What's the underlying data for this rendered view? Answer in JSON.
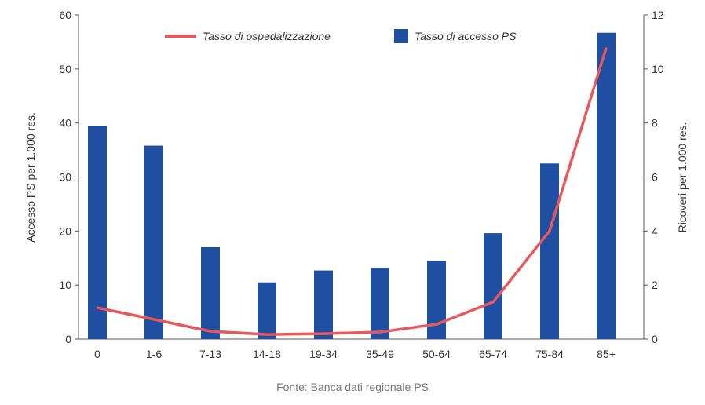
{
  "chart_data": {
    "type": "bar+line",
    "categories": [
      "0",
      "1-6",
      "7-13",
      "14-18",
      "19-34",
      "35-49",
      "50-64",
      "65-74",
      "75-84",
      "85+"
    ],
    "series": [
      {
        "name": "Tasso di accesso PS",
        "type": "bar",
        "axis": "left",
        "color": "#1f4fa3",
        "values": [
          39.5,
          35.8,
          17.0,
          10.5,
          12.7,
          13.2,
          14.5,
          19.6,
          32.5,
          56.7
        ]
      },
      {
        "name": "Tasso di ospedalizzazione",
        "type": "line",
        "axis": "right",
        "color": "#e8585a",
        "values": [
          1.16,
          0.73,
          0.29,
          0.17,
          0.2,
          0.26,
          0.55,
          1.37,
          4.0,
          10.76
        ]
      }
    ],
    "ylabel_left": "Accesso PS per 1.000 res.",
    "ylabel_right": "Ricoveri per 1.000 res.",
    "ylim_left": [
      0,
      60
    ],
    "ylim_right": [
      0,
      12
    ],
    "yticks_left": [
      "0",
      "10",
      "20",
      "30",
      "40",
      "50",
      "60"
    ],
    "yticks_right": [
      "0",
      "2",
      "4",
      "6",
      "8",
      "10",
      "12"
    ],
    "legend_position": "top-center",
    "grid": false,
    "source": "Fonte: Banca dati regionale PS"
  }
}
